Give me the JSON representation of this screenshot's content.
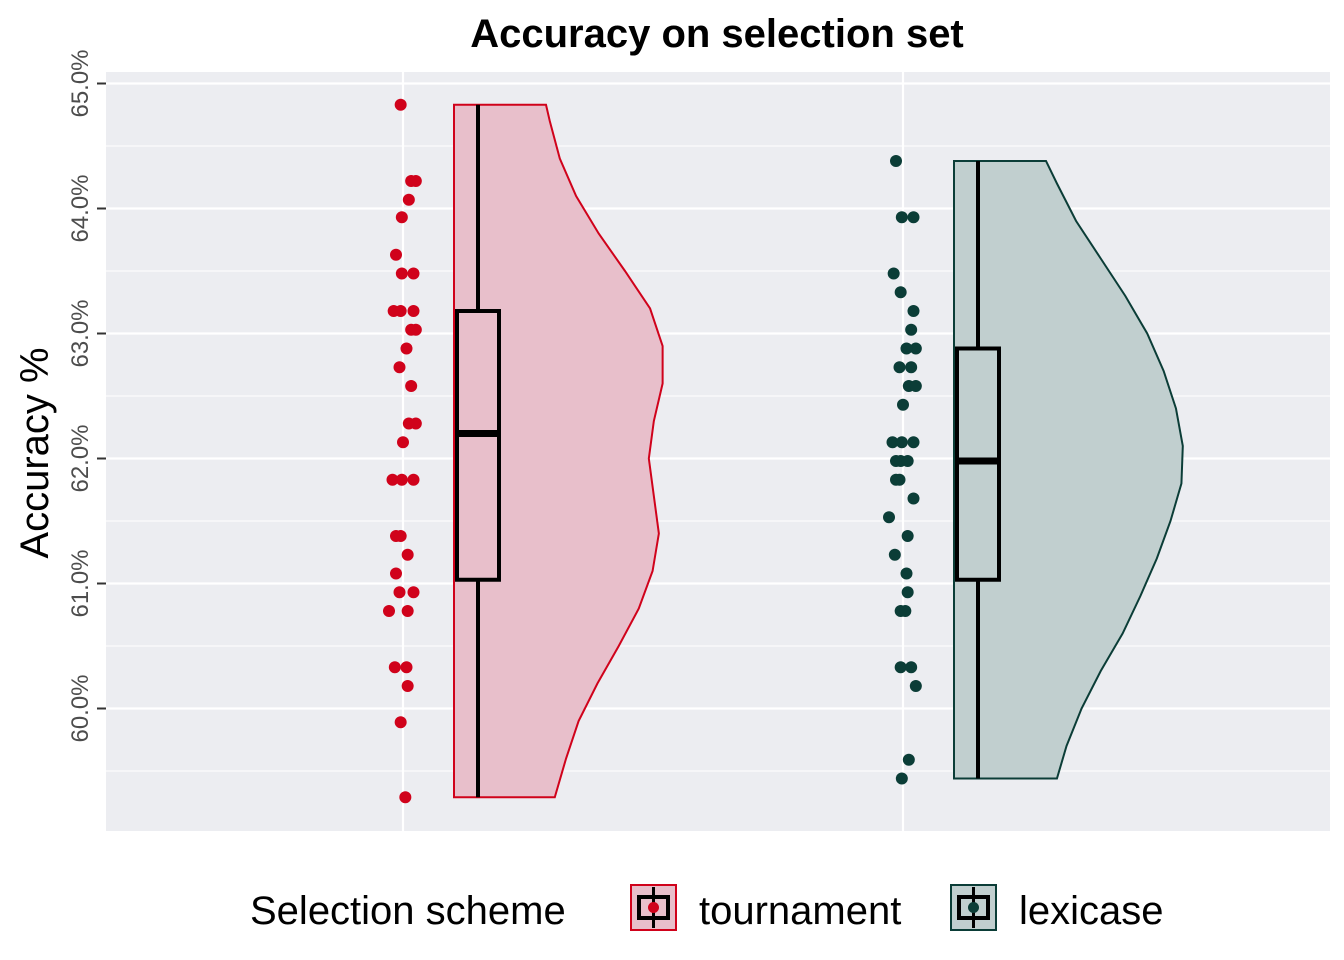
{
  "chart_data": {
    "type": "violin",
    "title": "Accuracy on selection set",
    "xlabel": "",
    "ylabel": "Accuracy %",
    "ylim": [
      59.0,
      65.0
    ],
    "yticks": [
      60.0,
      61.0,
      62.0,
      63.0,
      64.0,
      65.0
    ],
    "ytick_labels": [
      "60.0%",
      "61.0%",
      "62.0%",
      "63.0%",
      "64.0%",
      "65.0%"
    ],
    "grid": true,
    "legend": {
      "title": "Selection scheme",
      "position": "bottom",
      "entries": [
        "tournament",
        "lexicase"
      ]
    },
    "series": [
      {
        "name": "tournament",
        "color": "#D0021B",
        "fill": "#E8BFCB",
        "points": [
          64.83,
          64.22,
          64.22,
          64.07,
          63.93,
          63.63,
          63.48,
          63.48,
          63.18,
          63.18,
          63.18,
          63.03,
          63.03,
          62.88,
          62.73,
          62.58,
          62.28,
          62.28,
          62.13,
          61.83,
          61.83,
          61.83,
          61.38,
          61.38,
          61.23,
          61.08,
          60.93,
          60.93,
          60.78,
          60.78,
          60.33,
          60.33,
          60.18,
          59.89,
          59.29
        ],
        "box": {
          "min": 59.29,
          "q1": 61.03,
          "median": 62.2,
          "q3": 63.18,
          "max": 64.83
        },
        "density_max": 0.33,
        "density": [
          [
            59.29,
            0.07
          ],
          [
            59.6,
            0.16
          ],
          [
            59.9,
            0.26
          ],
          [
            60.2,
            0.41
          ],
          [
            60.5,
            0.58
          ],
          [
            60.8,
            0.74
          ],
          [
            61.1,
            0.85
          ],
          [
            61.4,
            0.9
          ],
          [
            61.7,
            0.86
          ],
          [
            62.0,
            0.82
          ],
          [
            62.3,
            0.86
          ],
          [
            62.6,
            0.93
          ],
          [
            62.9,
            0.93
          ],
          [
            63.2,
            0.83
          ],
          [
            63.5,
            0.63
          ],
          [
            63.8,
            0.42
          ],
          [
            64.1,
            0.24
          ],
          [
            64.4,
            0.11
          ],
          [
            64.7,
            0.03
          ],
          [
            64.83,
            0.0
          ]
        ]
      },
      {
        "name": "lexicase",
        "color": "#0B3D37",
        "fill": "#C1CFCF",
        "points": [
          64.38,
          63.93,
          63.93,
          63.48,
          63.33,
          63.18,
          63.03,
          62.88,
          62.88,
          62.73,
          62.73,
          62.58,
          62.58,
          62.43,
          62.13,
          62.13,
          62.13,
          61.98,
          61.98,
          61.98,
          61.83,
          61.83,
          61.68,
          61.53,
          61.38,
          61.23,
          61.08,
          60.93,
          60.78,
          60.78,
          60.33,
          60.33,
          60.18,
          59.59,
          59.44
        ],
        "box": {
          "min": 59.44,
          "q1": 61.03,
          "median": 61.98,
          "q3": 62.88,
          "max": 64.38
        },
        "density_max": 0.36,
        "density": [
          [
            59.44,
            0.08
          ],
          [
            59.7,
            0.15
          ],
          [
            60.0,
            0.26
          ],
          [
            60.3,
            0.4
          ],
          [
            60.6,
            0.56
          ],
          [
            60.9,
            0.69
          ],
          [
            61.2,
            0.81
          ],
          [
            61.5,
            0.91
          ],
          [
            61.8,
            0.99
          ],
          [
            62.1,
            1.0
          ],
          [
            62.4,
            0.95
          ],
          [
            62.7,
            0.86
          ],
          [
            63.0,
            0.74
          ],
          [
            63.3,
            0.58
          ],
          [
            63.6,
            0.4
          ],
          [
            63.9,
            0.22
          ],
          [
            64.2,
            0.08
          ],
          [
            64.38,
            0.0
          ]
        ]
      }
    ]
  }
}
